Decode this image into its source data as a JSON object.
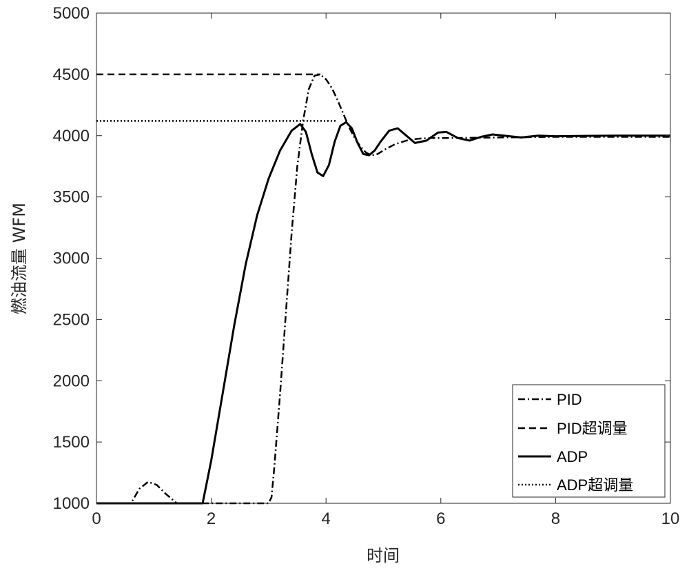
{
  "chart_data": {
    "type": "line",
    "xlabel": "时间",
    "ylabel": "燃油流量  WFM",
    "xlim": [
      0,
      10
    ],
    "ylim": [
      1000,
      5000
    ],
    "xticks": [
      0,
      2,
      4,
      6,
      8,
      10
    ],
    "yticks": [
      1000,
      1500,
      2000,
      2500,
      3000,
      3500,
      4000,
      4500,
      5000
    ],
    "grid": false,
    "legend_position": "bottom-right",
    "series": [
      {
        "name": "PID",
        "style": "dashdot",
        "x": [
          0,
          0.6,
          0.75,
          0.9,
          1.05,
          1.2,
          1.4,
          3.0,
          3.05,
          3.1,
          3.2,
          3.3,
          3.4,
          3.5,
          3.6,
          3.7,
          3.8,
          3.9,
          4.0,
          4.1,
          4.2,
          4.3,
          4.4,
          4.5,
          4.6,
          4.7,
          4.8,
          4.9,
          5.0,
          5.2,
          5.4,
          5.6,
          5.8,
          6.0,
          6.5,
          7.0,
          8.0,
          9.0,
          10.0
        ],
        "y": [
          1000,
          1000,
          1120,
          1175,
          1150,
          1080,
          1000,
          1000,
          1050,
          1300,
          1900,
          2550,
          3200,
          3750,
          4120,
          4380,
          4490,
          4500,
          4460,
          4390,
          4290,
          4180,
          4070,
          3980,
          3910,
          3860,
          3840,
          3850,
          3880,
          3930,
          3960,
          3975,
          3980,
          3980,
          3982,
          3985,
          3990,
          3990,
          3990
        ]
      },
      {
        "name": "PID超调量",
        "style": "dashed",
        "x": [
          0,
          3.9
        ],
        "y": [
          4500,
          4500
        ]
      },
      {
        "name": "ADP",
        "style": "solid",
        "x": [
          0,
          1.85,
          2.0,
          2.2,
          2.4,
          2.6,
          2.8,
          3.0,
          3.2,
          3.4,
          3.55,
          3.65,
          3.75,
          3.85,
          3.95,
          4.05,
          4.15,
          4.25,
          4.35,
          4.45,
          4.55,
          4.65,
          4.75,
          4.85,
          4.95,
          5.1,
          5.25,
          5.4,
          5.55,
          5.75,
          5.95,
          6.1,
          6.3,
          6.5,
          6.7,
          6.9,
          7.1,
          7.4,
          7.7,
          8.0,
          8.5,
          9.0,
          10.0
        ],
        "y": [
          1000,
          1000,
          1350,
          1900,
          2450,
          2950,
          3350,
          3650,
          3880,
          4040,
          4095,
          4030,
          3850,
          3700,
          3670,
          3760,
          3950,
          4080,
          4110,
          4060,
          3940,
          3850,
          3840,
          3880,
          3950,
          4040,
          4060,
          4000,
          3940,
          3960,
          4025,
          4030,
          3980,
          3960,
          3990,
          4010,
          4000,
          3985,
          4000,
          3995,
          3998,
          4000,
          4000
        ]
      },
      {
        "name": "ADP超调量",
        "style": "dotted",
        "x": [
          0,
          4.2
        ],
        "y": [
          4120,
          4120
        ]
      }
    ]
  }
}
